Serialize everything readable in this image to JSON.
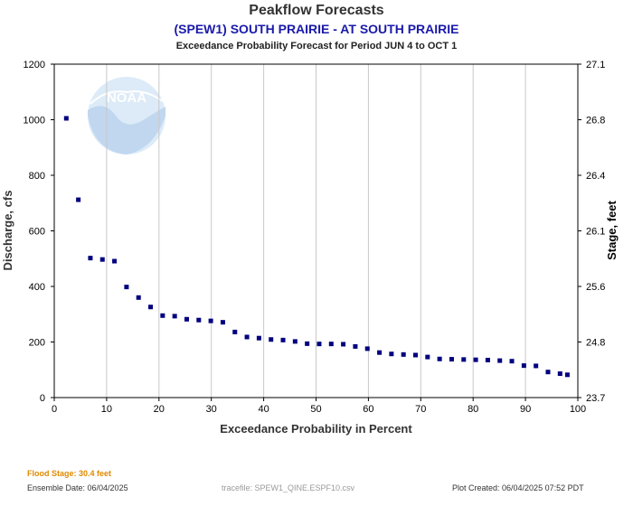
{
  "header": {
    "title": "Peakflow Forecasts",
    "subtitle": "(SPEW1) SOUTH PRAIRIE - AT SOUTH PRAIRIE",
    "period": "Exceedance Probability Forecast for Period JUN 4 to OCT 1"
  },
  "logo": {
    "text": "NOAA"
  },
  "footer": {
    "flood_stage": "Flood Stage: 30.4 feet",
    "ensemble_date": "Ensemble Date: 06/04/2025",
    "tracefile": "tracefile: SPEW1_QINE.ESPF10.csv",
    "plot_created": "Plot Created: 06/04/2025 07:52 PDT"
  },
  "colors": {
    "marker": "#00007f",
    "grid": "#c8c8c8",
    "axis": "#000000"
  },
  "chart_data": {
    "type": "scatter",
    "xlabel": "Exceedance Probability in Percent",
    "ylabel": "Discharge, cfs",
    "y2label": "Stage, feet",
    "xlim": [
      0,
      100
    ],
    "ylim": [
      0,
      1200
    ],
    "x_ticks": [
      0,
      10,
      20,
      30,
      40,
      50,
      60,
      70,
      80,
      90,
      100
    ],
    "y_ticks": [
      0,
      200,
      400,
      600,
      800,
      1000,
      1200
    ],
    "y2_ticks": [
      "23.7",
      "24.8",
      "25.6",
      "26.1",
      "26.4",
      "26.8",
      "27.1"
    ],
    "grid": "vertical",
    "series": [
      {
        "x": [
          2.3,
          4.6,
          6.9,
          9.2,
          11.5,
          13.8,
          16.1,
          18.4,
          20.7,
          23.0,
          25.3,
          27.6,
          29.9,
          32.2,
          34.5,
          36.8,
          39.1,
          41.4,
          43.7,
          46.0,
          48.3,
          50.6,
          52.9,
          55.2,
          57.5,
          59.8,
          62.1,
          64.4,
          66.7,
          69.0,
          71.3,
          73.6,
          75.9,
          78.2,
          80.5,
          82.8,
          85.1,
          87.4,
          89.7,
          92.0,
          94.3,
          96.6,
          98.0
        ],
        "values": [
          1005,
          712,
          502,
          497,
          491,
          398,
          360,
          326,
          295,
          293,
          282,
          279,
          276,
          271,
          236,
          218,
          214,
          209,
          207,
          202,
          194,
          193,
          193,
          192,
          184,
          176,
          162,
          157,
          155,
          153,
          146,
          139,
          138,
          137,
          136,
          135,
          133,
          131,
          115,
          114,
          92,
          86,
          82
        ]
      }
    ]
  }
}
